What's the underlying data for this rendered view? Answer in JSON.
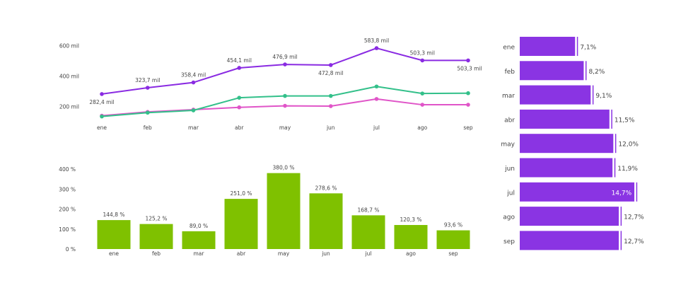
{
  "colors": {
    "line_purple": "#8a2be2",
    "line_green": "#33c08a",
    "line_pink": "#e055c8",
    "bar_green": "#7fc100",
    "bar_purple": "#8a34e3",
    "axis_text": "#444444",
    "label_text": "#444444"
  },
  "chart_data": [
    {
      "type": "line",
      "categories": [
        "ene",
        "feb",
        "mar",
        "abr",
        "may",
        "jun",
        "jul",
        "ago",
        "sep"
      ],
      "y_ticks": [
        "200 mil",
        "400 mil",
        "600 mil"
      ],
      "y_tick_values": [
        200000,
        400000,
        600000
      ],
      "ylim": [
        110000,
        640000
      ],
      "grid": false,
      "series": [
        {
          "values": [
            282400,
            323700,
            358400,
            454100,
            476900,
            472800,
            583800,
            503300,
            503300
          ],
          "labels": [
            "282,4 mil",
            "323,7 mil",
            "358,4 mil",
            "454,1 mil",
            "476,9 mil",
            "472,8 mil",
            "583,8 mil",
            "503,3 mil",
            "503,3 mil"
          ],
          "color": "line_purple"
        },
        {
          "values": [
            135000,
            160000,
            175000,
            258000,
            270000,
            270000,
            332000,
            286000,
            288000
          ],
          "color": "line_green"
        },
        {
          "values": [
            140000,
            165000,
            180000,
            195000,
            205000,
            203000,
            250000,
            212000,
            212000
          ],
          "color": "line_pink"
        }
      ]
    },
    {
      "type": "bar",
      "categories": [
        "ene",
        "feb",
        "mar",
        "abr",
        "may",
        "jun",
        "jul",
        "ago",
        "sep"
      ],
      "values": [
        144.8,
        125.2,
        89.0,
        251.0,
        380.0,
        278.6,
        168.7,
        120.3,
        93.6
      ],
      "labels": [
        "144,8 %",
        "125,2 %",
        "89,0 %",
        "251,0 %",
        "380,0 %",
        "278,6 %",
        "168,7 %",
        "120,3 %",
        "93,6 %"
      ],
      "y_ticks": [
        "0 %",
        "100 %",
        "200 %",
        "300 %",
        "400 %"
      ],
      "y_tick_values": [
        0,
        100,
        200,
        300,
        400
      ],
      "ylim": [
        0,
        400
      ],
      "grid": false
    },
    {
      "type": "bar",
      "orientation": "horizontal",
      "categories": [
        "ene",
        "feb",
        "mar",
        "abr",
        "may",
        "jun",
        "jul",
        "ago",
        "sep"
      ],
      "values": [
        7.1,
        8.2,
        9.1,
        11.5,
        12.0,
        11.9,
        14.7,
        12.7,
        12.7
      ],
      "labels": [
        "7,1%",
        "8,2%",
        "9,1%",
        "11,5%",
        "12,0%",
        "11,9%",
        "14,7%",
        "12,7%",
        "12,7%"
      ],
      "xlim": [
        0,
        15.5
      ],
      "grid": false
    }
  ]
}
